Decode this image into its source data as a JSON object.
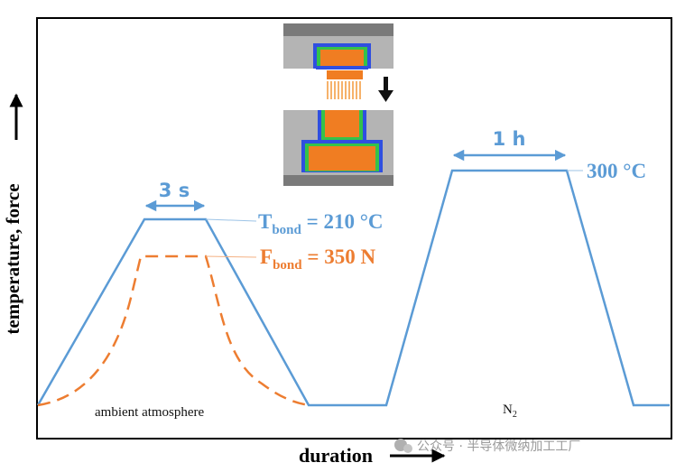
{
  "axes": {
    "y_label": "temperature, force",
    "x_label": "duration"
  },
  "annotations": {
    "bond_time": "3 s",
    "anneal_time": "1 h",
    "t_bond_main": "T",
    "t_bond_sub": "bond",
    "t_bond_value": " = 210 °C",
    "f_bond_main": "F",
    "f_bond_sub": "bond",
    "f_bond_value": " = 350 N",
    "anneal_temp": "300 °C",
    "ambient": "ambient atmosphere",
    "n2_main": "N",
    "n2_sub": "2"
  },
  "watermark": "公众号 · 半导体微纳加工工厂",
  "colors": {
    "temperature": "#5b9bd5",
    "force": "#ed7d31",
    "die_outer": "#2f4fe0",
    "die_mid": "#35c24a",
    "die_core": "#f07d22",
    "chuck": "#b4b4b4",
    "chuck_dark": "#7a7a7a"
  }
}
